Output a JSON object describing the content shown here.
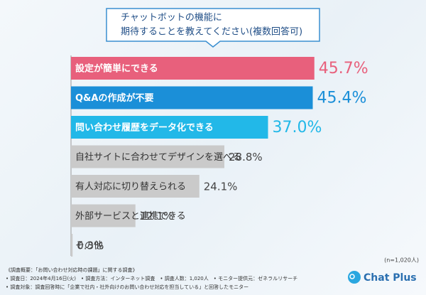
{
  "chart_data": {
    "type": "bar",
    "title": "チャットボットの機能に",
    "subtitle": "期待することを教えてください(複数回答可)",
    "categories": [
      "設定が簡単にできる",
      "Q&Aの作成が不要",
      "問い合わせ履歴をデータ化できる",
      "自社サイトに合わせてデザインを選べる",
      "有人対応に切り替えられる",
      "外部サービスと連携できる",
      "その他"
    ],
    "values": [
      45.7,
      45.4,
      37.0,
      28.8,
      24.1,
      12.1,
      0.3
    ],
    "value_labels": [
      "45.7%",
      "45.4%",
      "37.0%",
      "28.8%",
      "24.1%",
      "12.1%",
      "0.3%"
    ],
    "colors": [
      "#e8607c",
      "#1b8fd8",
      "#22b8e8",
      "#cacaca",
      "#cacaca",
      "#cacaca",
      "#cacaca"
    ],
    "note": "(n=1,020人)",
    "footnotes": [
      "《調査概要：「お問い合わせ対応時の課題」に関する調査》",
      "• 調査日：2024年4月16日(火)　• 調査方法：インターネット調査　• 調査人数：1,020人　• モニター提供元：ゼネラルリサーチ",
      "• 調査対象：調査回答時に「企業で社内・社外向けのお問い合わせ対応を担当している」と回答したモニター"
    ],
    "logo": "Chat Plus"
  }
}
